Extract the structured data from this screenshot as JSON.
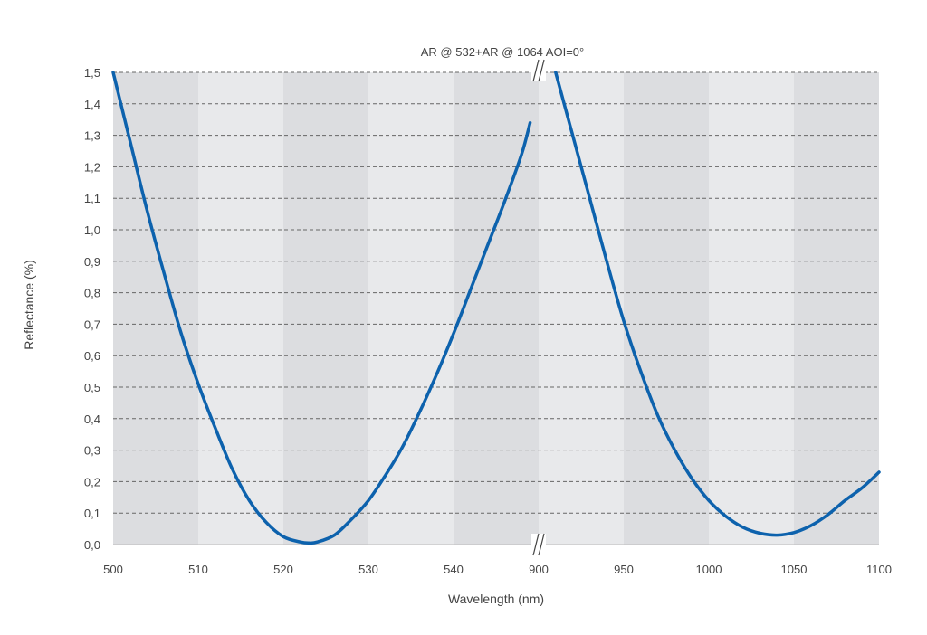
{
  "chart_data": {
    "type": "line",
    "title": "AR @ 532+AR @ 1064 AOI=0°",
    "xlabel": "Wavelength (nm)",
    "ylabel": "Reflectance (%)",
    "ylim": [
      0,
      1.5
    ],
    "y_ticks": [
      "0,0",
      "0,1",
      "0,2",
      "0,3",
      "0,4",
      "0,5",
      "0,6",
      "0,7",
      "0,8",
      "0,9",
      "1,0",
      "1,1",
      "1,2",
      "1,3",
      "1,4",
      "1,5"
    ],
    "grid": "horizontal dashed",
    "axis_break": true,
    "x_segments": [
      {
        "xlim": [
          500,
          550
        ],
        "ticks": [
          "500",
          "510",
          "520",
          "530",
          "540"
        ]
      },
      {
        "xlim": [
          900,
          1100
        ],
        "ticks": [
          "900",
          "950",
          "1000",
          "1050",
          "1100"
        ]
      }
    ],
    "series": [
      {
        "segment": 0,
        "color": "#0d62ad",
        "x": [
          500,
          502,
          504,
          506,
          508,
          510,
          512,
          514,
          516,
          518,
          520,
          522,
          523,
          524,
          526,
          528,
          530,
          532,
          534,
          536,
          538,
          540,
          542,
          544,
          546,
          548,
          549
        ],
        "y": [
          1.5,
          1.28,
          1.06,
          0.86,
          0.67,
          0.51,
          0.37,
          0.24,
          0.14,
          0.07,
          0.025,
          0.008,
          0.005,
          0.008,
          0.03,
          0.08,
          0.14,
          0.22,
          0.31,
          0.42,
          0.54,
          0.67,
          0.81,
          0.95,
          1.09,
          1.24,
          1.34
        ]
      },
      {
        "segment": 1,
        "color": "#0d62ad",
        "x": [
          910,
          920,
          930,
          940,
          950,
          960,
          970,
          980,
          990,
          1000,
          1010,
          1020,
          1030,
          1040,
          1050,
          1060,
          1070,
          1080,
          1090,
          1100
        ],
        "y": [
          1.5,
          1.3,
          1.1,
          0.9,
          0.71,
          0.55,
          0.41,
          0.3,
          0.21,
          0.14,
          0.09,
          0.055,
          0.036,
          0.03,
          0.038,
          0.06,
          0.095,
          0.14,
          0.18,
          0.23
        ]
      }
    ],
    "colors": {
      "band_dark": "#dcdde0",
      "band_light": "#e8e9eb",
      "line": "#0d62ad",
      "grid": "#666666"
    }
  }
}
